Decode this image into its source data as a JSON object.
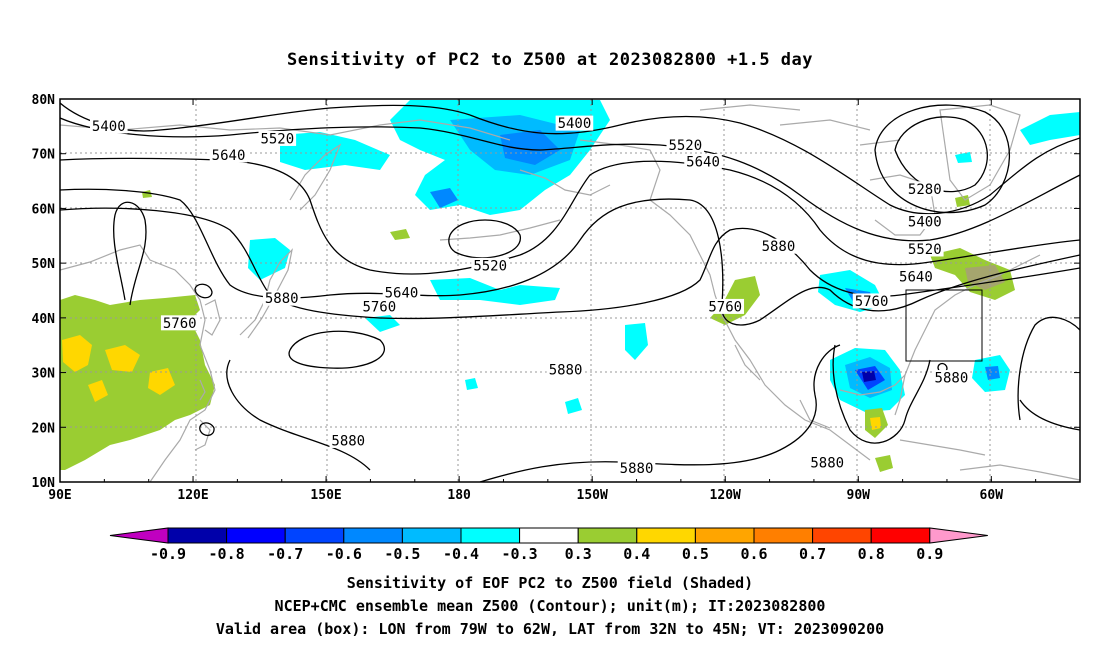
{
  "title": "Sensitivity of PC2 to Z500 at 2023082800 +1.5 day",
  "map": {
    "lon_labels": [
      "90E",
      "120E",
      "150E",
      "180",
      "150W",
      "120W",
      "90W",
      "60W"
    ],
    "lat_labels": [
      "80N",
      "70N",
      "60N",
      "50N",
      "40N",
      "30N",
      "20N",
      "10N"
    ],
    "contour_labels": [
      {
        "text": "5400",
        "lon": 101,
        "lat": 75
      },
      {
        "text": "5520",
        "lon": 139,
        "lat": 72.7
      },
      {
        "text": "5640",
        "lon": 128,
        "lat": 69.7
      },
      {
        "text": "5400",
        "lon": 206,
        "lat": 75.5
      },
      {
        "text": "5520",
        "lon": 231,
        "lat": 71.5
      },
      {
        "text": "5640",
        "lon": 235,
        "lat": 68.5
      },
      {
        "text": "5280",
        "lon": 285,
        "lat": 63.5
      },
      {
        "text": "5400",
        "lon": 285,
        "lat": 57.5
      },
      {
        "text": "5520",
        "lon": 285,
        "lat": 52.5
      },
      {
        "text": "5640",
        "lon": 283,
        "lat": 47.5
      },
      {
        "text": "5760",
        "lon": 273,
        "lat": 43
      },
      {
        "text": "5880",
        "lon": 252,
        "lat": 53
      },
      {
        "text": "5520",
        "lon": 187,
        "lat": 49.5
      },
      {
        "text": "5640",
        "lon": 167,
        "lat": 44.5
      },
      {
        "text": "5760",
        "lon": 162,
        "lat": 42
      },
      {
        "text": "5880",
        "lon": 140,
        "lat": 43.5
      },
      {
        "text": "5760",
        "lon": 117,
        "lat": 39
      },
      {
        "text": "5760",
        "lon": 240,
        "lat": 42
      },
      {
        "text": "5880",
        "lon": 204,
        "lat": 30.5
      },
      {
        "text": "5880",
        "lon": 155,
        "lat": 17.5
      },
      {
        "text": "5880",
        "lon": 220,
        "lat": 12.5
      },
      {
        "text": "5880",
        "lon": 263,
        "lat": 13.5
      },
      {
        "text": "5880",
        "lon": 291,
        "lat": 29
      }
    ]
  },
  "colorbar": {
    "labels": [
      "-0.9",
      "-0.8",
      "-0.7",
      "-0.6",
      "-0.5",
      "-0.4",
      "-0.3",
      "0.3",
      "0.4",
      "0.5",
      "0.6",
      "0.7",
      "0.8",
      "0.9"
    ],
    "colors": [
      "#0000aa",
      "#0000ff",
      "#0044ff",
      "#0088ff",
      "#00bbff",
      "#00ffff",
      "#ffffff",
      "#9acd32",
      "#ffd700",
      "#ffa500",
      "#ff7f00",
      "#ff4500",
      "#ff0000"
    ],
    "low_end_color": "#c000c0",
    "high_end_color": "#ff99cc"
  },
  "footer": {
    "line1": "Sensitivity of EOF PC2 to Z500 field (Shaded)",
    "line2": "NCEP+CMC ensemble mean Z500 (Contour); unit(m); IT:2023082800",
    "line3": "Valid area (box): LON from 79W to 62W, LAT from 32N to 45N; VT: 2023090200"
  }
}
